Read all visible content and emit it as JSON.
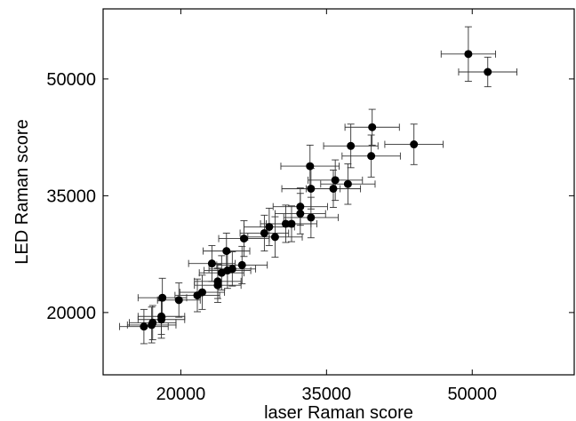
{
  "chart_data": {
    "type": "scatter",
    "xlabel": "laser Raman score",
    "ylabel": "LED Raman score",
    "xlim": [
      12000,
      60500
    ],
    "ylim": [
      12000,
      59000
    ],
    "x_ticks": [
      20000,
      35000,
      50000
    ],
    "y_ticks": [
      20000,
      35000,
      50000
    ],
    "x_tick_labels": [
      "20000",
      "35000",
      "50000"
    ],
    "y_tick_labels": [
      "20000",
      "35000",
      "50000"
    ],
    "grid": false,
    "legend": "none",
    "marker_color": "#000000",
    "error_bar_color": "#333333",
    "points": [
      {
        "x": 49600,
        "y": 53200,
        "xerr": 2800,
        "yerr": 3500
      },
      {
        "x": 51600,
        "y": 50900,
        "xerr": 3000,
        "yerr": 1900
      },
      {
        "x": 39700,
        "y": 43800,
        "xerr": 2800,
        "yerr": 2300
      },
      {
        "x": 37500,
        "y": 41400,
        "xerr": 2800,
        "yerr": 2800
      },
      {
        "x": 39600,
        "y": 40100,
        "xerr": 3000,
        "yerr": 2700
      },
      {
        "x": 44000,
        "y": 41600,
        "xerr": 3000,
        "yerr": 2600
      },
      {
        "x": 33300,
        "y": 38800,
        "xerr": 3000,
        "yerr": 2700
      },
      {
        "x": 35900,
        "y": 37000,
        "xerr": 2800,
        "yerr": 2600
      },
      {
        "x": 37200,
        "y": 36500,
        "xerr": 2800,
        "yerr": 2600
      },
      {
        "x": 35700,
        "y": 35900,
        "xerr": 2800,
        "yerr": 2400
      },
      {
        "x": 33400,
        "y": 35900,
        "xerr": 3000,
        "yerr": 2600
      },
      {
        "x": 32300,
        "y": 33600,
        "xerr": 2800,
        "yerr": 2400
      },
      {
        "x": 32300,
        "y": 32700,
        "xerr": 2600,
        "yerr": 2600
      },
      {
        "x": 33400,
        "y": 32200,
        "xerr": 2800,
        "yerr": 2600
      },
      {
        "x": 30800,
        "y": 31400,
        "xerr": 2600,
        "yerr": 2400
      },
      {
        "x": 31400,
        "y": 31400,
        "xerr": 2600,
        "yerr": 2300
      },
      {
        "x": 29100,
        "y": 31000,
        "xerr": 2600,
        "yerr": 2400
      },
      {
        "x": 28600,
        "y": 30200,
        "xerr": 2500,
        "yerr": 2300
      },
      {
        "x": 29700,
        "y": 29700,
        "xerr": 2800,
        "yerr": 2600
      },
      {
        "x": 26500,
        "y": 29500,
        "xerr": 2600,
        "yerr": 2300
      },
      {
        "x": 24700,
        "y": 27900,
        "xerr": 2400,
        "yerr": 2300
      },
      {
        "x": 23200,
        "y": 26300,
        "xerr": 2400,
        "yerr": 2300
      },
      {
        "x": 26300,
        "y": 26100,
        "xerr": 2600,
        "yerr": 2400
      },
      {
        "x": 25300,
        "y": 25600,
        "xerr": 2400,
        "yerr": 2200
      },
      {
        "x": 24800,
        "y": 25400,
        "xerr": 2400,
        "yerr": 2300
      },
      {
        "x": 24200,
        "y": 25100,
        "xerr": 2300,
        "yerr": 2200
      },
      {
        "x": 23800,
        "y": 24000,
        "xerr": 2400,
        "yerr": 2200
      },
      {
        "x": 23800,
        "y": 23500,
        "xerr": 2400,
        "yerr": 2200
      },
      {
        "x": 22200,
        "y": 22600,
        "xerr": 2300,
        "yerr": 2200
      },
      {
        "x": 21700,
        "y": 22200,
        "xerr": 2300,
        "yerr": 2100
      },
      {
        "x": 19800,
        "y": 21600,
        "xerr": 2200,
        "yerr": 2200
      },
      {
        "x": 18100,
        "y": 21900,
        "xerr": 2500,
        "yerr": 2500
      },
      {
        "x": 18000,
        "y": 19500,
        "xerr": 2400,
        "yerr": 2300
      },
      {
        "x": 18000,
        "y": 19100,
        "xerr": 2400,
        "yerr": 2400
      },
      {
        "x": 17100,
        "y": 18700,
        "xerr": 2400,
        "yerr": 2200
      },
      {
        "x": 17000,
        "y": 18400,
        "xerr": 2500,
        "yerr": 2300
      },
      {
        "x": 16200,
        "y": 18200,
        "xerr": 2500,
        "yerr": 2200
      }
    ]
  }
}
